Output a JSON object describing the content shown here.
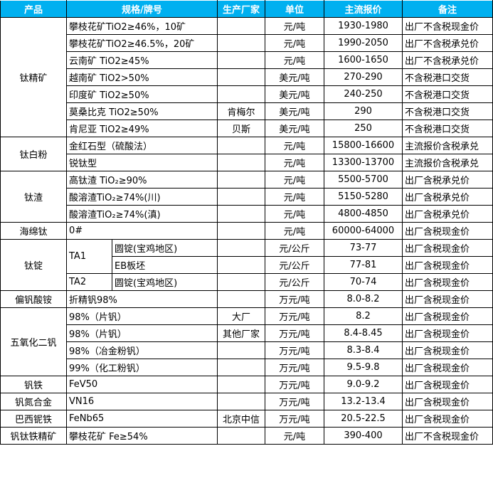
{
  "header": {
    "product": "产品",
    "spec": "规格/牌号",
    "maker": "生产厂家",
    "unit": "单位",
    "price": "主流报价",
    "note": "备注"
  },
  "colors": {
    "header_bg": "#00B0F0",
    "header_text": "#FFFFFF"
  },
  "groups": [
    {
      "product": "钛精矿",
      "rows": [
        {
          "spec": "攀枝花矿TiO2≥46%，10矿",
          "maker": "",
          "unit": "元/吨",
          "price": "1930-1980",
          "note": "出厂不含税现金价"
        },
        {
          "spec": "攀枝花矿TiO2≥46.5%，20矿",
          "maker": "",
          "unit": "元/吨",
          "price": "1990-2050",
          "note": "出厂不含税承兑价"
        },
        {
          "spec": "云南矿 TiO2≥45%",
          "maker": "",
          "unit": "元/吨",
          "price": "1600-1650",
          "note": "出厂不含税承兑价"
        },
        {
          "spec": "越南矿 TiO2>50%",
          "maker": "",
          "unit": "美元/吨",
          "price": "270-290",
          "note": "不含税港口交货"
        },
        {
          "spec": "印度矿 TiO2≥50%",
          "maker": "",
          "unit": "美元/吨",
          "price": "240-250",
          "note": "不含税港口交货"
        },
        {
          "spec": "莫桑比克 TiO2≥50%",
          "maker": "肯梅尔",
          "unit": "美元/吨",
          "price": "290",
          "note": "不含税港口交货"
        },
        {
          "spec": "肯尼亚 TiO2≥49%",
          "maker": "贝斯",
          "unit": "美元/吨",
          "price": "250",
          "note": "不含税港口交货"
        }
      ]
    },
    {
      "product": "钛白粉",
      "rows": [
        {
          "spec": "金红石型（硫酸法）",
          "maker": "",
          "unit": "元/吨",
          "price": "15800-16600",
          "note": "主流报价含税承兑"
        },
        {
          "spec": "锐钛型",
          "maker": "",
          "unit": "元/吨",
          "price": "13300-13700",
          "note": "主流报价含税承兑"
        }
      ]
    },
    {
      "product": "钛渣",
      "rows": [
        {
          "spec": "高钛渣 TiO₂≥90%",
          "maker": "",
          "unit": "元/吨",
          "price": "5500-5700",
          "note": "出厂含税承兑价"
        },
        {
          "spec": "酸溶渣TiO₂≥74%(川)",
          "maker": "",
          "unit": "元/吨",
          "price": "5150-5280",
          "note": "出厂含税承兑价"
        },
        {
          "spec": "酸溶渣TiO₂≥74%(滇)",
          "maker": "",
          "unit": "元/吨",
          "price": "4800-4850",
          "note": "出厂含税承兑价"
        }
      ]
    },
    {
      "product": "海绵钛",
      "rows": [
        {
          "spec": "0#",
          "maker": "",
          "unit": "元/吨",
          "price": "60000-64000",
          "note": "出厂含税现金价"
        }
      ]
    },
    {
      "product": "钛锭",
      "grades": [
        {
          "grade": "TA1",
          "rows": [
            {
              "spec": "圆锭(宝鸡地区)",
              "maker": "",
              "unit": "元/公斤",
              "price": "73-77",
              "note": "出厂含税现金价"
            },
            {
              "spec": "EB板坯",
              "maker": "",
              "unit": "元/公斤",
              "price": "77-81",
              "note": "出厂含税现金价"
            }
          ]
        },
        {
          "grade": "TA2",
          "rows": [
            {
              "spec": "圆锭(宝鸡地区)",
              "maker": "",
              "unit": "元/公斤",
              "price": "70-74",
              "note": "出厂含税现金价"
            }
          ]
        }
      ]
    },
    {
      "product": "偏钒酸铵",
      "rows": [
        {
          "spec": "折精钒98%",
          "maker": "",
          "unit": "万元/吨",
          "price": "8.0-8.2",
          "note": "出厂含税现金价"
        }
      ]
    },
    {
      "product": "五氧化二钒",
      "rows": [
        {
          "spec": "98%（片钒）",
          "maker": "大厂",
          "unit": "万元/吨",
          "price": "8.2",
          "note": "出厂含税现金价"
        },
        {
          "spec": "98%（片钒）",
          "maker": "其他厂家",
          "unit": "万元/吨",
          "price": "8.4-8.45",
          "note": "出厂含税现金价"
        },
        {
          "spec": "98%（冶金粉钒）",
          "maker": "",
          "unit": "万元/吨",
          "price": "8.3-8.4",
          "note": "出厂含税现金价"
        },
        {
          "spec": "99%（化工粉钒）",
          "maker": "",
          "unit": "万元/吨",
          "price": "9.5-9.8",
          "note": "出厂含税现金价"
        }
      ]
    },
    {
      "product": "钒铁",
      "rows": [
        {
          "spec": "FeV50",
          "maker": "",
          "unit": "万元/吨",
          "price": "9.0-9.2",
          "note": "出厂含税现金价"
        }
      ]
    },
    {
      "product": "钒氮合金",
      "rows": [
        {
          "spec": "VN16",
          "maker": "",
          "unit": "万元/吨",
          "price": "13.2-13.4",
          "note": "出厂含税现金价"
        }
      ]
    },
    {
      "product": "巴西铌铁",
      "rows": [
        {
          "spec": "FeNb65",
          "maker": "北京中信",
          "unit": "万元/吨",
          "price": "20.5-22.5",
          "note": "出厂含税现金价"
        }
      ]
    },
    {
      "product": "钒钛铁精矿",
      "rows": [
        {
          "spec": "攀枝花矿 Fe≥54%",
          "maker": "",
          "unit": "元/吨",
          "price": "390-400",
          "note": "出厂不含税现金价"
        }
      ]
    }
  ]
}
